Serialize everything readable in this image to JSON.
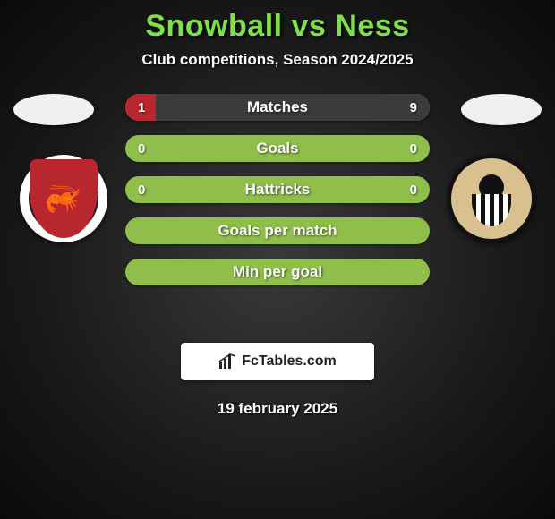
{
  "title": {
    "text": "Snowball vs Ness",
    "color": "#7fe04a",
    "fontsize": 34
  },
  "subtitle": {
    "text": "Club competitions, Season 2024/2025",
    "color": "#ffffff",
    "fontsize": 17
  },
  "palette": {
    "left_team": "#b7272d",
    "right_team": "#3b3b3b",
    "bar_empty": "#8fbf4a",
    "label_color": "#ffffff"
  },
  "left_crest": {
    "ring": "#ffffff",
    "shield": "#b7272d",
    "glyph": "🦐"
  },
  "right_crest": {
    "outer": "#111111",
    "inner": "#d9c08f"
  },
  "bars": [
    {
      "label": "Matches",
      "left": "1",
      "right": "9",
      "left_pct": 10,
      "right_pct": 90,
      "show_vals": true
    },
    {
      "label": "Goals",
      "left": "0",
      "right": "0",
      "left_pct": 0,
      "right_pct": 0,
      "show_vals": true
    },
    {
      "label": "Hattricks",
      "left": "0",
      "right": "0",
      "left_pct": 0,
      "right_pct": 0,
      "show_vals": true
    },
    {
      "label": "Goals per match",
      "left": "",
      "right": "",
      "left_pct": 0,
      "right_pct": 0,
      "show_vals": false
    },
    {
      "label": "Min per goal",
      "left": "",
      "right": "",
      "left_pct": 0,
      "right_pct": 0,
      "show_vals": false
    }
  ],
  "brand": {
    "text": "FcTables.com"
  },
  "date": {
    "text": "19 february 2025"
  }
}
